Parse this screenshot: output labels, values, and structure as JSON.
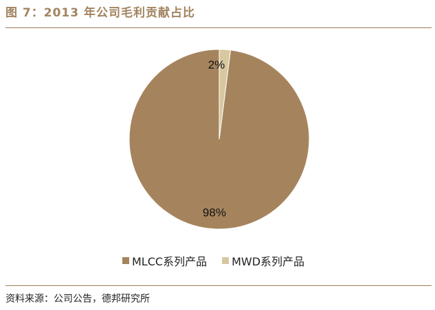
{
  "figure": {
    "title": "图 7：2013 年公司毛利贡献占比",
    "source": "资料来源：公司公告，德邦研究所"
  },
  "colors": {
    "title": "#a2835f",
    "rule": "#9b7a58"
  },
  "chart_data": {
    "type": "pie",
    "title": "",
    "series": [
      {
        "name": "MLCC系列产品",
        "value": 98,
        "label": "98%",
        "color": "#a5845d"
      },
      {
        "name": "MWD系列产品",
        "value": 2,
        "label": "2%",
        "color": "#d8c8a0"
      }
    ],
    "legend_placement": "bottom"
  }
}
